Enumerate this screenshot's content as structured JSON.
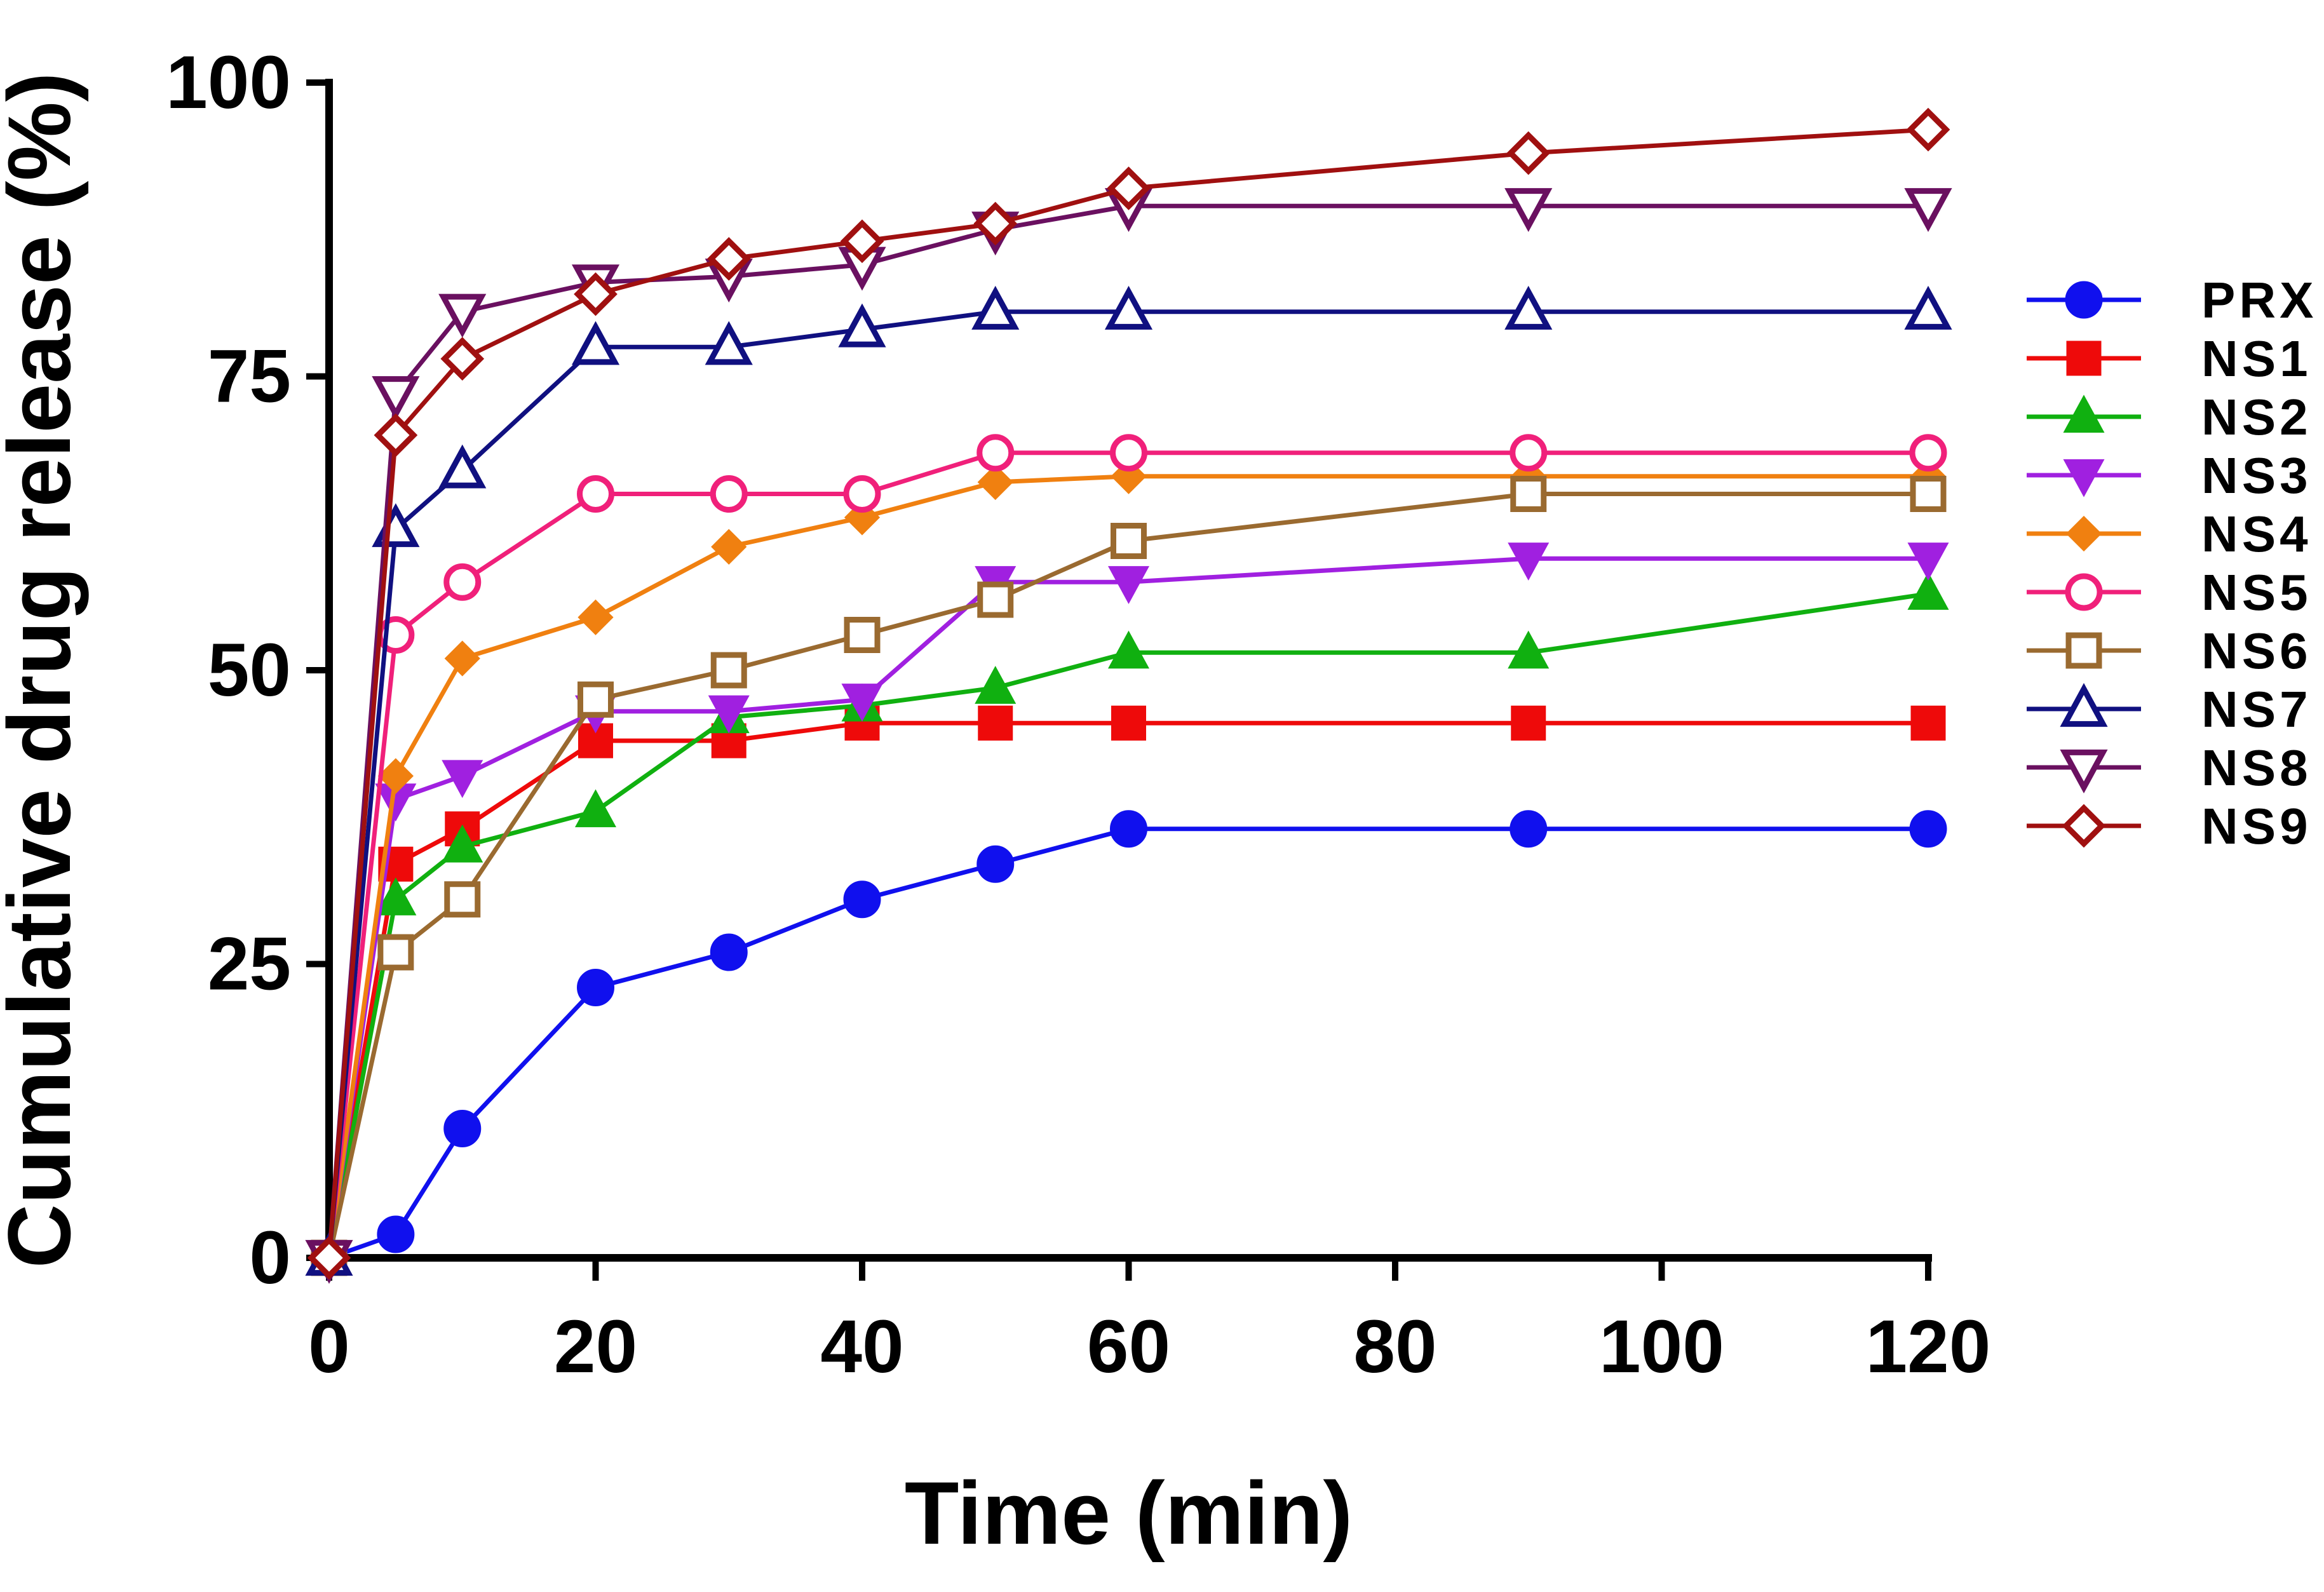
{
  "chart_data": {
    "type": "line",
    "title": "",
    "xlabel": "Time (min)",
    "ylabel": "Cumulative drug release (%)",
    "xlim": [
      0,
      120
    ],
    "ylim": [
      0,
      100
    ],
    "xticks": [
      0,
      20,
      40,
      60,
      80,
      100,
      120
    ],
    "yticks": [
      0,
      25,
      50,
      75,
      100
    ],
    "grid": false,
    "legend_position": "right",
    "x": [
      0,
      5,
      10,
      20,
      30,
      40,
      50,
      60,
      90,
      120
    ],
    "series": [
      {
        "name": "PRX",
        "color": "#1010ee",
        "marker": "circle-filled",
        "values": [
          0,
          2,
          11,
          23,
          26,
          30.5,
          33.5,
          36.5,
          36.5,
          36.5
        ]
      },
      {
        "name": "NS1",
        "color": "#ee0a0a",
        "marker": "square-filled",
        "values": [
          0,
          33.5,
          36.5,
          44,
          44,
          45.5,
          45.5,
          45.5,
          45.5,
          45.5
        ]
      },
      {
        "name": "NS2",
        "color": "#10b010",
        "marker": "triangle-up-filled",
        "values": [
          0,
          30.5,
          35,
          38,
          46,
          47,
          48.5,
          51.5,
          51.5,
          56.5
        ]
      },
      {
        "name": "NS3",
        "color": "#a020e0",
        "marker": "triangle-down-filled",
        "values": [
          0,
          39,
          41,
          46.5,
          46.5,
          47.5,
          57.5,
          57.5,
          59.5,
          59.5
        ]
      },
      {
        "name": "NS4",
        "color": "#f08010",
        "marker": "diamond-filled",
        "values": [
          0,
          41,
          51,
          54.5,
          60.5,
          63,
          66,
          66.5,
          66.5,
          66.5
        ]
      },
      {
        "name": "NS5",
        "color": "#f0207a",
        "marker": "circle-open",
        "values": [
          0,
          53,
          57.5,
          65,
          65,
          65,
          68.5,
          68.5,
          68.5,
          68.5
        ]
      },
      {
        "name": "NS6",
        "color": "#9a6a30",
        "marker": "square-open",
        "values": [
          0,
          26,
          30.5,
          47.5,
          50,
          53,
          56,
          61,
          65,
          65
        ]
      },
      {
        "name": "NS7",
        "color": "#101080",
        "marker": "triangle-up-open",
        "values": [
          0,
          62,
          67,
          77.5,
          77.5,
          79,
          80.5,
          80.5,
          80.5,
          80.5
        ]
      },
      {
        "name": "NS8",
        "color": "#6a1060",
        "marker": "triangle-down-open",
        "values": [
          0,
          73.5,
          80.5,
          83,
          83.5,
          84.5,
          87.5,
          89.5,
          89.5,
          89.5
        ]
      },
      {
        "name": "NS9",
        "color": "#a01010",
        "marker": "diamond-open",
        "values": [
          0,
          70,
          76.5,
          82,
          85,
          86.5,
          88,
          91,
          94,
          96
        ]
      }
    ]
  }
}
